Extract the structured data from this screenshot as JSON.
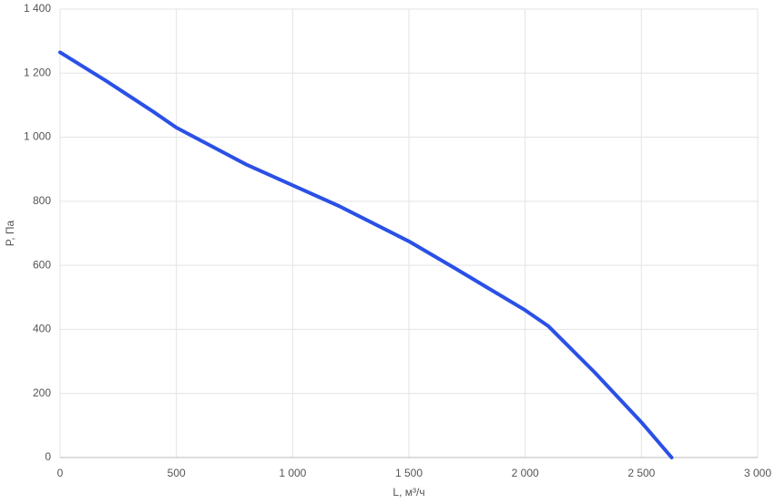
{
  "chart_data": {
    "type": "line",
    "x_label": "L, м³/ч",
    "y_label": "P, Па",
    "x": [
      0,
      200,
      400,
      500,
      800,
      1000,
      1200,
      1500,
      1700,
      1850,
      2000,
      2100,
      2300,
      2500,
      2630
    ],
    "series": [
      {
        "color": "#2a50e6",
        "values": [
          1265,
          1175,
          1080,
          1030,
          915,
          850,
          785,
          675,
          590,
          525,
          460,
          410,
          265,
          110,
          0
        ]
      }
    ],
    "xlim": [
      0,
      3000
    ],
    "xticks": [
      0,
      500,
      {
        "value": 1000,
        "label": "1 000"
      },
      {
        "value": 1500,
        "label": "1 500"
      },
      {
        "value": 2000,
        "label": "2 000"
      },
      {
        "value": 2500,
        "label": "2 500"
      },
      {
        "value": 3000,
        "label": "3 000"
      }
    ],
    "ylim": [
      0,
      1400
    ],
    "yticks": [
      0,
      200,
      400,
      600,
      800,
      {
        "value": 1000,
        "label": "1 000"
      },
      {
        "value": 1200,
        "label": "1 200"
      },
      {
        "value": 1400,
        "label": "1 400"
      }
    ],
    "grid": true
  }
}
